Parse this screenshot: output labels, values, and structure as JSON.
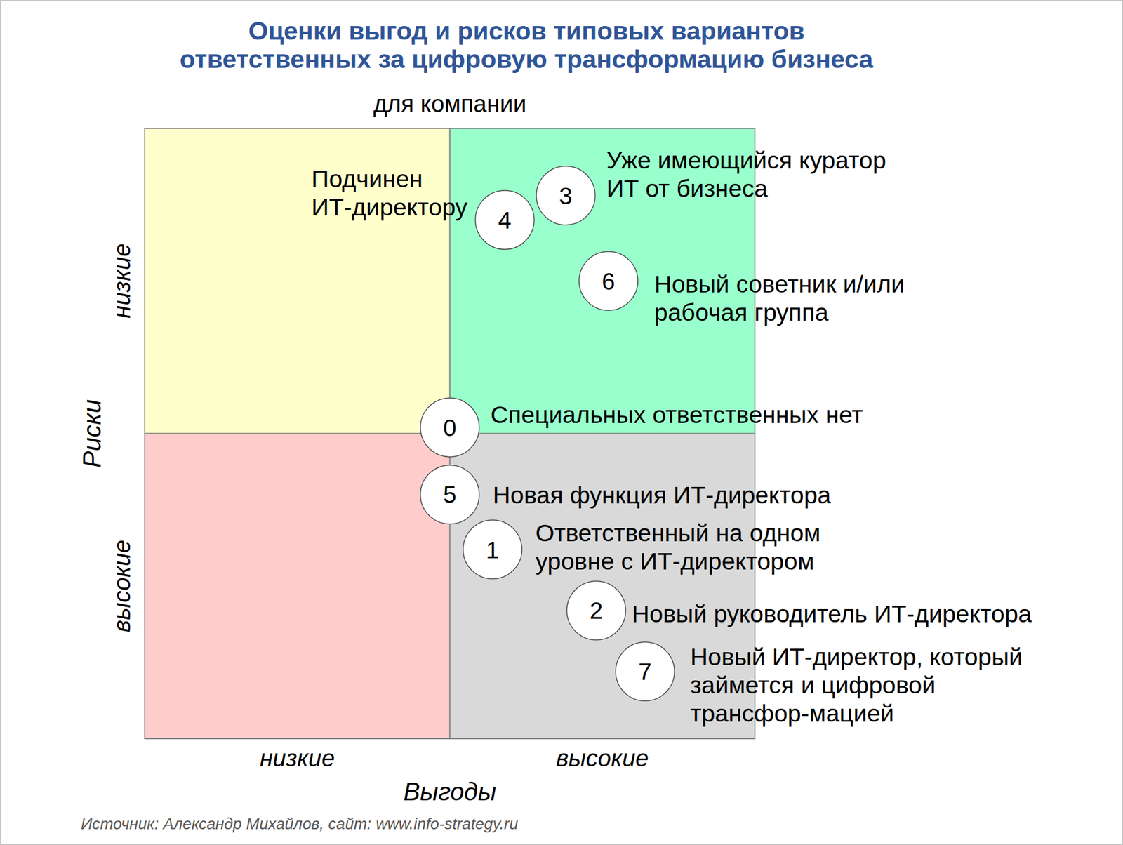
{
  "chart_data": {
    "type": "scatter",
    "title": [
      "Оценки выгод и рисков типовых вариантов",
      "ответственных за цифровую трансформацию бизнеса"
    ],
    "subtitle": "для компании",
    "x_label": "Выгоды",
    "y_label": "Риски",
    "xlim": [
      0,
      10
    ],
    "ylim": [
      0,
      10
    ],
    "xticks": [
      {
        "value": 2.5,
        "label": "низкие"
      },
      {
        "value": 7.5,
        "label": "высокие"
      }
    ],
    "yticks": [
      {
        "value": 2.5,
        "label": "высокие"
      },
      {
        "value": 7.5,
        "label": "низкие"
      }
    ],
    "grid": false,
    "point_numbers": [
      0,
      1,
      2,
      3,
      4,
      5,
      6,
      7
    ],
    "x": [
      5.0,
      5.7,
      7.4,
      6.9,
      5.9,
      5.0,
      7.6,
      8.2
    ],
    "values": [
      5.1,
      3.1,
      2.1,
      8.9,
      8.5,
      4.0,
      7.5,
      1.1
    ],
    "point_labels": [
      [
        "Специальных ответственных нет"
      ],
      [
        "Ответственный на одном",
        "уровне с ИТ-директором"
      ],
      [
        "Новый руководитель ИТ-директора"
      ],
      [
        "Уже имеющийся куратор",
        "ИТ от бизнеса"
      ],
      [
        "Подчинен",
        "ИТ-директору"
      ],
      [
        "Новая функция ИТ-директора"
      ],
      [
        "Новый советник и/или",
        "рабочая группа"
      ],
      [
        "Новый ИТ-директор, который",
        "займется и цифровой",
        "трансфор-мацией"
      ]
    ],
    "source": "Источник: Александр Михайлов, сайт: www.info-strategy.ru"
  }
}
